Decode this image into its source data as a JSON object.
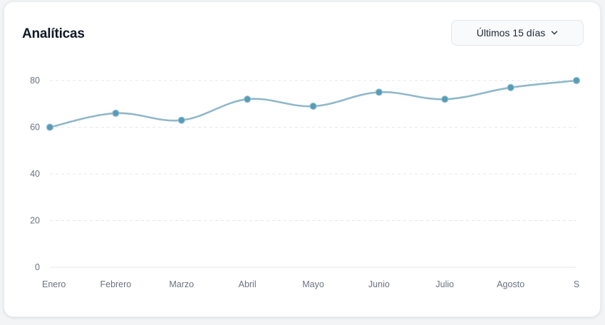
{
  "header": {
    "title": "Analíticas",
    "range_label": "Últimos 15 días",
    "range_icon": "chevron-down-icon"
  },
  "colors": {
    "line": "#8fb8c9",
    "point": "#5b9ab4",
    "grid": "#e5e7eb",
    "text": "#6b7280"
  },
  "chart_data": {
    "type": "line",
    "title": "",
    "xlabel": "",
    "ylabel": "",
    "categories": [
      "Enero",
      "Febrero",
      "Marzo",
      "Abril",
      "Mayo",
      "Junio",
      "Julio",
      "Agosto",
      "S"
    ],
    "values": [
      60,
      66,
      63,
      72,
      69,
      75,
      72,
      77,
      80
    ],
    "ylim": [
      0,
      80
    ],
    "yticks": [
      0,
      20,
      40,
      60,
      80
    ],
    "grid": true,
    "curve": "smooth",
    "legend": "none"
  }
}
